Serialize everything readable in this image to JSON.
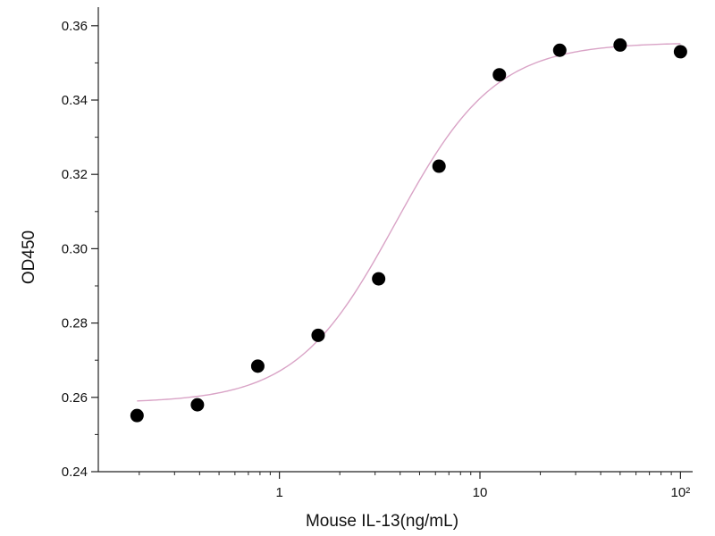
{
  "chart_data": {
    "type": "scatter",
    "title": "",
    "xlabel": "Mouse IL-13(ng/mL)",
    "ylabel": "OD450",
    "x_scale": "log",
    "xlim": [
      0.125,
      115
    ],
    "ylim": [
      0.24,
      0.365
    ],
    "x_ticks": [
      {
        "value": 1,
        "label": "1"
      },
      {
        "value": 10,
        "label": "10"
      },
      {
        "value": 100,
        "label": "10²"
      }
    ],
    "y_ticks": [
      {
        "value": 0.24,
        "label": "0.24"
      },
      {
        "value": 0.26,
        "label": "0.26"
      },
      {
        "value": 0.28,
        "label": "0.28"
      },
      {
        "value": 0.3,
        "label": "0.30"
      },
      {
        "value": 0.32,
        "label": "0.32"
      },
      {
        "value": 0.34,
        "label": "0.34"
      },
      {
        "value": 0.36,
        "label": "0.36"
      }
    ],
    "grid": false,
    "legend": "none",
    "series": [
      {
        "x": [
          0.195,
          0.39,
          0.78,
          1.56,
          3.125,
          6.25,
          12.5,
          25,
          50,
          100
        ],
        "y": [
          0.2551,
          0.258,
          0.2684,
          0.2767,
          0.2919,
          0.3222,
          0.3468,
          0.3534,
          0.3548,
          0.353
        ],
        "marker_color": "#000000"
      }
    ],
    "fit_curve": {
      "type": "4PL",
      "bottom": 0.2585,
      "top": 0.3555,
      "ec50": 3.8,
      "hill": 1.75,
      "color": "#d9a3c6"
    }
  }
}
